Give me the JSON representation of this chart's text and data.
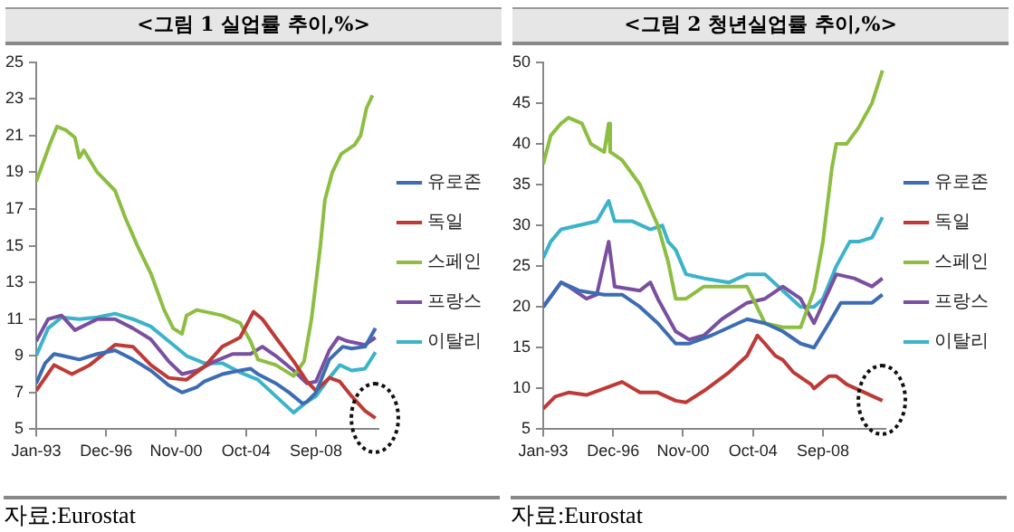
{
  "chart_data": [
    {
      "type": "line",
      "title": "<그림 1 실업률 추이,%>",
      "annotations": [
        "자료:Eurostat"
      ],
      "legend": "right",
      "grid": false,
      "marker": "none",
      "xlim": [
        "1993-01",
        "2012-03"
      ],
      "xticks": [
        {
          "value": "1993-01",
          "label": "Jan-93"
        },
        {
          "value": "1996-12",
          "label": "Dec-96"
        },
        {
          "value": "2000-11",
          "label": "Nov-00"
        },
        {
          "value": "2004-10",
          "label": "Oct-04"
        },
        {
          "value": "2008-09",
          "label": "Sep-08"
        }
      ],
      "ylim": [
        5,
        25
      ],
      "yticks": [
        5,
        7,
        9,
        11,
        13,
        15,
        17,
        19,
        21,
        23,
        25
      ],
      "series": [
        {
          "name": "유로존",
          "color": "#3c6db4",
          "x": [
            "1993-01",
            "1993-07",
            "1994-01",
            "1994-07",
            "1995-06",
            "1996-06",
            "1997-06",
            "1998-06",
            "1999-06",
            "2000-06",
            "2001-03",
            "2002-01",
            "2002-06",
            "2003-06",
            "2004-06",
            "2005-01",
            "2005-06",
            "2006-06",
            "2007-03",
            "2007-12",
            "2008-03",
            "2008-09",
            "2009-06",
            "2010-03",
            "2010-09",
            "2011-06",
            "2012-01"
          ],
          "values": [
            7.5,
            8.6,
            9.1,
            9.0,
            8.8,
            9.1,
            9.3,
            8.8,
            8.2,
            7.4,
            7.0,
            7.3,
            7.6,
            8.0,
            8.2,
            8.3,
            8.0,
            7.5,
            7.0,
            6.4,
            6.5,
            7.0,
            8.8,
            9.5,
            9.4,
            9.5,
            10.5
          ]
        },
        {
          "name": "독일",
          "color": "#be3a36",
          "x": [
            "1993-01",
            "1994-01",
            "1995-01",
            "1996-01",
            "1997-06",
            "1998-06",
            "1999-06",
            "2000-06",
            "2001-06",
            "2002-06",
            "2003-06",
            "2004-06",
            "2005-03",
            "2005-09",
            "2006-06",
            "2007-06",
            "2008-03",
            "2008-09",
            "2009-06",
            "2010-01",
            "2010-09",
            "2011-06",
            "2012-01"
          ],
          "values": [
            7.1,
            8.5,
            8.0,
            8.5,
            9.6,
            9.5,
            8.5,
            7.8,
            7.7,
            8.4,
            9.5,
            10.0,
            11.4,
            11.0,
            10.0,
            8.7,
            7.6,
            7.1,
            7.8,
            7.6,
            6.8,
            6.0,
            5.6
          ]
        },
        {
          "name": "스페인",
          "color": "#8dbe42",
          "x": [
            "1993-01",
            "1993-10",
            "1994-03",
            "1994-09",
            "1995-03",
            "1995-06",
            "1995-09",
            "1996-06",
            "1997-06",
            "1998-01",
            "1998-09",
            "1999-06",
            "2000-03",
            "2000-09",
            "2001-03",
            "2001-06",
            "2002-01",
            "2003-06",
            "2004-06",
            "2005-01",
            "2005-06",
            "2006-06",
            "2007-06",
            "2008-01",
            "2008-06",
            "2008-12",
            "2009-03",
            "2009-08",
            "2010-02",
            "2010-11",
            "2011-03",
            "2011-07",
            "2011-11"
          ],
          "values": [
            18.5,
            20.5,
            21.5,
            21.3,
            20.9,
            19.8,
            20.2,
            19.0,
            18.0,
            16.5,
            15.0,
            13.5,
            11.5,
            10.5,
            10.2,
            11.2,
            11.5,
            11.2,
            10.8,
            9.8,
            8.8,
            8.5,
            7.9,
            8.7,
            11.0,
            15.0,
            17.5,
            19.0,
            20.0,
            20.5,
            21.0,
            22.5,
            23.2
          ]
        },
        {
          "name": "프랑스",
          "color": "#7a4fa0",
          "x": [
            "1993-01",
            "1993-09",
            "1994-06",
            "1995-03",
            "1996-06",
            "1997-06",
            "1998-06",
            "1999-06",
            "2000-06",
            "2001-03",
            "2002-01",
            "2003-01",
            "2004-01",
            "2005-01",
            "2005-09",
            "2006-06",
            "2007-06",
            "2008-03",
            "2008-09",
            "2009-06",
            "2009-12",
            "2010-06",
            "2011-06",
            "2012-01"
          ],
          "values": [
            9.8,
            11.0,
            11.2,
            10.4,
            11.0,
            11.0,
            10.5,
            9.9,
            8.7,
            8.0,
            8.2,
            8.7,
            9.1,
            9.1,
            9.5,
            9.0,
            8.2,
            7.5,
            7.6,
            9.3,
            10.0,
            9.8,
            9.6,
            10.0
          ]
        },
        {
          "name": "이탈리",
          "color": "#3bb3c9",
          "x": [
            "1993-01",
            "1993-09",
            "1994-06",
            "1995-06",
            "1996-06",
            "1997-06",
            "1998-06",
            "1999-06",
            "2000-06",
            "2001-06",
            "2002-06",
            "2003-06",
            "2004-06",
            "2005-06",
            "2006-06",
            "2007-06",
            "2008-03",
            "2008-09",
            "2009-06",
            "2010-01",
            "2010-09",
            "2011-06",
            "2012-01"
          ],
          "values": [
            9.0,
            10.5,
            11.1,
            11.0,
            11.1,
            11.3,
            11.0,
            10.6,
            9.8,
            9.0,
            8.6,
            8.6,
            8.1,
            7.7,
            6.8,
            5.9,
            6.5,
            6.8,
            7.8,
            8.5,
            8.2,
            8.3,
            9.2
          ]
        }
      ]
    },
    {
      "type": "line",
      "title": "<그림 2 청년실업률 추이,%>",
      "annotations": [
        "자료:Eurostat"
      ],
      "legend": "right",
      "grid": false,
      "marker": "none",
      "xlim": [
        "1993-01",
        "2012-03"
      ],
      "xticks": [
        {
          "value": "1993-01",
          "label": "Jan-93"
        },
        {
          "value": "1996-12",
          "label": "Dec-96"
        },
        {
          "value": "2000-11",
          "label": "Nov-00"
        },
        {
          "value": "2004-10",
          "label": "Oct-04"
        },
        {
          "value": "2008-09",
          "label": "Sep-08"
        }
      ],
      "ylim": [
        5,
        50
      ],
      "yticks": [
        5,
        10,
        15,
        20,
        25,
        30,
        35,
        40,
        45,
        50
      ],
      "series": [
        {
          "name": "유로존",
          "color": "#3c6db4",
          "x": [
            "1993-01",
            "1994-01",
            "1995-01",
            "1996-06",
            "1997-06",
            "1998-06",
            "1999-06",
            "2000-06",
            "2001-03",
            "2002-06",
            "2003-06",
            "2004-06",
            "2005-06",
            "2006-06",
            "2007-06",
            "2008-03",
            "2009-01",
            "2009-09",
            "2010-06",
            "2011-06",
            "2012-01"
          ],
          "values": [
            20,
            23,
            22,
            21.5,
            21.5,
            20,
            18,
            15.5,
            15.5,
            16.5,
            17.5,
            18.5,
            18,
            17,
            15.5,
            15,
            18,
            20.5,
            20.5,
            20.5,
            21.5
          ]
        },
        {
          "name": "독일",
          "color": "#be3a36",
          "x": [
            "1993-01",
            "1993-09",
            "1994-06",
            "1995-06",
            "1996-06",
            "1997-06",
            "1998-06",
            "1999-06",
            "2000-06",
            "2001-01",
            "2002-01",
            "2003-06",
            "2004-06",
            "2005-01",
            "2005-06",
            "2006-01",
            "2006-06",
            "2007-01",
            "2008-01",
            "2008-03",
            "2009-01",
            "2009-06",
            "2010-01",
            "2011-01",
            "2012-01"
          ],
          "values": [
            7.5,
            9,
            9.5,
            9.2,
            10,
            10.8,
            9.5,
            9.5,
            8.5,
            8.3,
            9.7,
            12,
            14,
            16.5,
            15.5,
            14,
            13.5,
            12,
            10.5,
            10,
            11.5,
            11.5,
            10.5,
            9.5,
            8.5
          ]
        },
        {
          "name": "스페인",
          "color": "#8dbe42",
          "x": [
            "1993-01",
            "1993-06",
            "1994-01",
            "1994-06",
            "1995-03",
            "1995-09",
            "1996-06",
            "1996-09",
            "1996-10",
            "1997-06",
            "1998-06",
            "1999-06",
            "2000-01",
            "2000-06",
            "2001-01",
            "2002-01",
            "2003-06",
            "2004-06",
            "2005-06",
            "2006-06",
            "2007-06",
            "2008-03",
            "2008-09",
            "2009-03",
            "2009-06",
            "2010-01",
            "2010-09",
            "2011-06",
            "2012-01"
          ],
          "values": [
            37.5,
            41,
            42.5,
            43.2,
            42.5,
            40,
            39,
            42.5,
            39,
            38,
            35,
            30,
            25.5,
            21,
            21,
            22.5,
            22.5,
            22.5,
            18,
            17.5,
            17.5,
            22,
            28,
            37,
            40,
            40,
            42,
            45,
            49
          ]
        },
        {
          "name": "프랑스",
          "color": "#7a4fa0",
          "x": [
            "1993-01",
            "1994-01",
            "1994-06",
            "1995-06",
            "1996-01",
            "1996-09",
            "1997-01",
            "1998-06",
            "1999-01",
            "1999-06",
            "2000-06",
            "2001-03",
            "2002-01",
            "2003-01",
            "2004-06",
            "2005-06",
            "2006-06",
            "2007-06",
            "2008-03",
            "2009-01",
            "2009-06",
            "2010-06",
            "2011-06",
            "2012-01"
          ],
          "values": [
            20,
            23,
            22.5,
            21,
            21.5,
            28,
            22.5,
            22,
            23,
            21,
            17,
            16,
            16.5,
            18.5,
            20.5,
            21,
            22.5,
            21,
            18,
            22,
            24,
            23.5,
            22.5,
            23.5
          ]
        },
        {
          "name": "이탈리",
          "color": "#3bb3c9",
          "x": [
            "1993-01",
            "1993-06",
            "1994-01",
            "1995-01",
            "1996-01",
            "1996-09",
            "1997-01",
            "1998-01",
            "1999-01",
            "1999-09",
            "2000-01",
            "2000-06",
            "2001-01",
            "2002-01",
            "2003-06",
            "2004-06",
            "2005-06",
            "2006-06",
            "2007-06",
            "2008-03",
            "2008-09",
            "2009-06",
            "2010-03",
            "2010-09",
            "2011-06",
            "2012-01"
          ],
          "values": [
            26,
            28,
            29.5,
            30,
            30.5,
            33,
            30.5,
            30.5,
            29.5,
            30,
            28,
            27,
            24,
            23.5,
            23,
            24,
            24,
            22,
            20,
            20,
            21,
            25,
            28,
            28,
            28.5,
            31
          ]
        }
      ]
    }
  ]
}
